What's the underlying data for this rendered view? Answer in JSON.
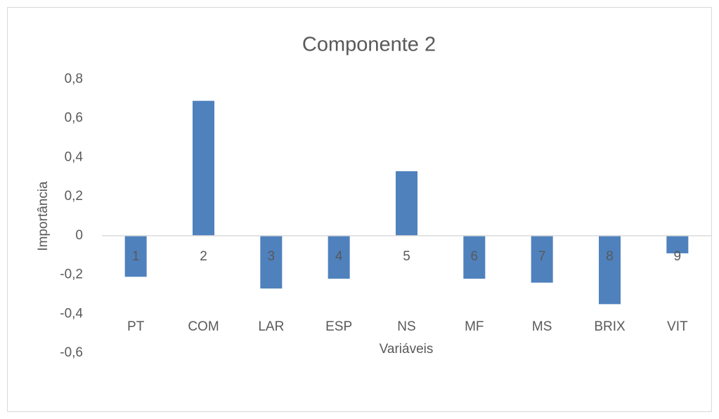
{
  "chart_data": {
    "type": "bar",
    "title": "Componente 2",
    "y_label": "Importância",
    "x_label": "Variáveis",
    "categories": [
      "PT",
      "COM",
      "LAR",
      "ESP",
      "NS",
      "MF",
      "MS",
      "BRIX",
      "VIT"
    ],
    "category_numbers": [
      "1",
      "2",
      "3",
      "4",
      "5",
      "6",
      "7",
      "8",
      "9"
    ],
    "values": [
      -0.21,
      0.69,
      -0.27,
      -0.22,
      0.33,
      -0.22,
      -0.24,
      -0.35,
      -0.09
    ],
    "color": "#4f81bd",
    "ylim": [
      -0.6,
      0.8
    ],
    "yticks": [
      {
        "value": 0.8,
        "label": "0,8"
      },
      {
        "value": 0.6,
        "label": "0,6"
      },
      {
        "value": 0.4,
        "label": "0,4"
      },
      {
        "value": 0.2,
        "label": "0,2"
      },
      0,
      {
        "value": -0.2,
        "label": "-0,2"
      },
      {
        "value": -0.4,
        "label": "-0,4"
      },
      {
        "value": -0.6,
        "label": "-0,6"
      }
    ],
    "grid": false
  }
}
